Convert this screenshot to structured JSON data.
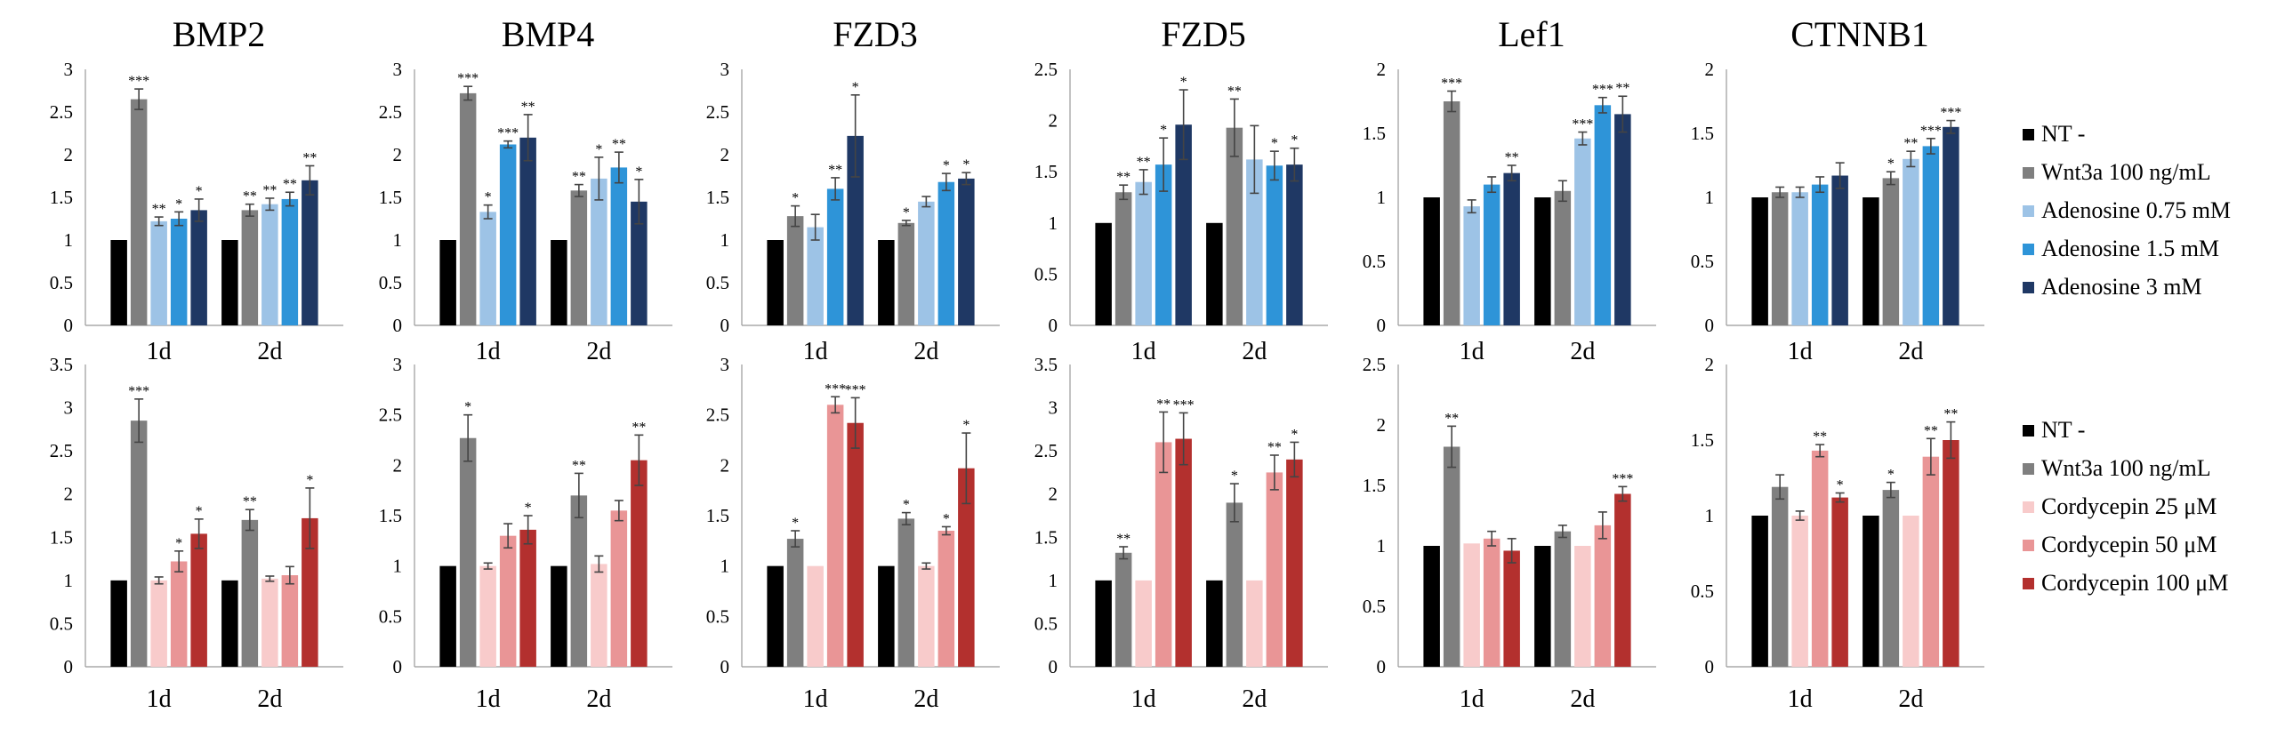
{
  "colors": {
    "NT -": "#000000",
    "Wnt3a 100 ng/mL": "#7f7f7f",
    "Adenosine 0.75 mM": "#9dc3e6",
    "Adenosine 1.5 mM": "#2e94d8",
    "Adenosine 3 mM": "#1f3864",
    "Cordycepin 25 μM": "#f8cbcb",
    "Cordycepin 50 μM": "#e99596",
    "Cordycepin 100 μM": "#b3302e"
  },
  "legends": [
    [
      "NT -",
      "Wnt3a 100 ng/mL",
      "Adenosine 0.75 mM",
      "Adenosine 1.5 mM",
      "Adenosine 3 mM"
    ],
    [
      "NT -",
      "Wnt3a 100 ng/mL",
      "Cordycepin 25 μM",
      "Cordycepin 50 μM",
      "Cordycepin 100 μM"
    ]
  ],
  "chart_data": [
    {
      "type": "bar",
      "title": "BMP2",
      "categories": [
        "1d",
        "2d"
      ],
      "ylim": [
        0,
        3
      ],
      "yticks": [
        "0",
        "0.5",
        "1",
        "1.5",
        "2",
        "2.5",
        "3"
      ],
      "series": [
        {
          "name": "NT -",
          "values": [
            1,
            1
          ],
          "errors": [
            0.02,
            0.02
          ],
          "sig": [
            "",
            ""
          ]
        },
        {
          "name": "Wnt3a 100 ng/mL",
          "values": [
            2.65,
            1.35
          ],
          "errors": [
            0.12,
            0.07
          ],
          "sig": [
            "***",
            "**"
          ]
        },
        {
          "name": "Adenosine 0.75 mM",
          "values": [
            1.22,
            1.42
          ],
          "errors": [
            0.05,
            0.07
          ],
          "sig": [
            "**",
            "**"
          ]
        },
        {
          "name": "Adenosine 1.5 mM",
          "values": [
            1.25,
            1.48
          ],
          "errors": [
            0.08,
            0.08
          ],
          "sig": [
            "*",
            "**"
          ]
        },
        {
          "name": "Adenosine 3 mM",
          "values": [
            1.35,
            1.7
          ],
          "errors": [
            0.13,
            0.17
          ],
          "sig": [
            "*",
            "**"
          ]
        }
      ]
    },
    {
      "type": "bar",
      "title": "BMP4",
      "categories": [
        "1d",
        "2d"
      ],
      "ylim": [
        0,
        3
      ],
      "yticks": [
        "0",
        "0.5",
        "1",
        "1.5",
        "2",
        "2.5",
        "3"
      ],
      "series": [
        {
          "name": "NT -",
          "values": [
            1,
            1
          ],
          "errors": [
            0.02,
            0.02
          ],
          "sig": [
            "",
            ""
          ]
        },
        {
          "name": "Wnt3a 100 ng/mL",
          "values": [
            2.72,
            1.58
          ],
          "errors": [
            0.08,
            0.07
          ],
          "sig": [
            "***",
            "**"
          ]
        },
        {
          "name": "Adenosine 0.75 mM",
          "values": [
            1.33,
            1.72
          ],
          "errors": [
            0.08,
            0.25
          ],
          "sig": [
            "*",
            "*"
          ]
        },
        {
          "name": "Adenosine 1.5 mM",
          "values": [
            2.12,
            1.85
          ],
          "errors": [
            0.04,
            0.18
          ],
          "sig": [
            "***",
            "**"
          ]
        },
        {
          "name": "Adenosine 3 mM",
          "values": [
            2.2,
            1.45
          ],
          "errors": [
            0.27,
            0.26
          ],
          "sig": [
            "**",
            "*"
          ]
        }
      ]
    },
    {
      "type": "bar",
      "title": "FZD3",
      "categories": [
        "1d",
        "2d"
      ],
      "ylim": [
        0,
        3
      ],
      "yticks": [
        "0",
        "0.5",
        "1",
        "1.5",
        "2",
        "2.5",
        "3"
      ],
      "series": [
        {
          "name": "NT -",
          "values": [
            1,
            1
          ],
          "errors": [
            0.02,
            0.02
          ],
          "sig": [
            "",
            ""
          ]
        },
        {
          "name": "Wnt3a 100 ng/mL",
          "values": [
            1.28,
            1.2
          ],
          "errors": [
            0.12,
            0.03
          ],
          "sig": [
            "*",
            "*"
          ]
        },
        {
          "name": "Adenosine 0.75 mM",
          "values": [
            1.15,
            1.45
          ],
          "errors": [
            0.15,
            0.06
          ],
          "sig": [
            "",
            ""
          ]
        },
        {
          "name": "Adenosine 1.5 mM",
          "values": [
            1.6,
            1.68
          ],
          "errors": [
            0.13,
            0.1
          ],
          "sig": [
            "**",
            "*"
          ]
        },
        {
          "name": "Adenosine 3 mM",
          "values": [
            2.22,
            1.72
          ],
          "errors": [
            0.48,
            0.07
          ],
          "sig": [
            "*",
            "*"
          ]
        }
      ]
    },
    {
      "type": "bar",
      "title": "FZD5",
      "categories": [
        "1d",
        "2d"
      ],
      "ylim": [
        0,
        2.5
      ],
      "yticks": [
        "0",
        "0.5",
        "1",
        "1.5",
        "2",
        "2.5"
      ],
      "series": [
        {
          "name": "NT -",
          "values": [
            1,
            1
          ],
          "errors": [
            0.02,
            0.02
          ],
          "sig": [
            "",
            ""
          ]
        },
        {
          "name": "Wnt3a 100 ng/mL",
          "values": [
            1.3,
            1.93
          ],
          "errors": [
            0.07,
            0.28
          ],
          "sig": [
            "**",
            "**"
          ]
        },
        {
          "name": "Adenosine 0.75 mM",
          "values": [
            1.4,
            1.62
          ],
          "errors": [
            0.12,
            0.33
          ],
          "sig": [
            "**",
            ""
          ]
        },
        {
          "name": "Adenosine 1.5 mM",
          "values": [
            1.57,
            1.56
          ],
          "errors": [
            0.26,
            0.14
          ],
          "sig": [
            "*",
            "*"
          ]
        },
        {
          "name": "Adenosine 3 mM",
          "values": [
            1.96,
            1.57
          ],
          "errors": [
            0.34,
            0.16
          ],
          "sig": [
            "*",
            "*"
          ]
        }
      ]
    },
    {
      "type": "bar",
      "title": "Lef1",
      "categories": [
        "1d",
        "2d"
      ],
      "ylim": [
        0,
        2
      ],
      "yticks": [
        "0",
        "0.5",
        "1",
        "1.5",
        "2"
      ],
      "series": [
        {
          "name": "NT -",
          "values": [
            1,
            1
          ],
          "errors": [
            0.02,
            0.02
          ],
          "sig": [
            "",
            ""
          ]
        },
        {
          "name": "Wnt3a 100 ng/mL",
          "values": [
            1.75,
            1.05
          ],
          "errors": [
            0.08,
            0.08
          ],
          "sig": [
            "***",
            ""
          ]
        },
        {
          "name": "Adenosine 0.75 mM",
          "values": [
            0.93,
            1.46
          ],
          "errors": [
            0.05,
            0.05
          ],
          "sig": [
            "",
            "***"
          ]
        },
        {
          "name": "Adenosine 1.5 mM",
          "values": [
            1.1,
            1.72
          ],
          "errors": [
            0.06,
            0.06
          ],
          "sig": [
            "",
            "***"
          ]
        },
        {
          "name": "Adenosine 3 mM",
          "values": [
            1.19,
            1.65
          ],
          "errors": [
            0.06,
            0.14
          ],
          "sig": [
            "**",
            "**"
          ]
        }
      ]
    },
    {
      "type": "bar",
      "title": "CTNNB1",
      "categories": [
        "1d",
        "2d"
      ],
      "ylim": [
        0,
        2
      ],
      "yticks": [
        "0",
        "0.5",
        "1",
        "1.5",
        "2"
      ],
      "series": [
        {
          "name": "NT -",
          "values": [
            1,
            1
          ],
          "errors": [
            0.02,
            0.02
          ],
          "sig": [
            "",
            ""
          ]
        },
        {
          "name": "Wnt3a 100 ng/mL",
          "values": [
            1.04,
            1.15
          ],
          "errors": [
            0.04,
            0.05
          ],
          "sig": [
            "",
            "*"
          ]
        },
        {
          "name": "Adenosine 0.75 mM",
          "values": [
            1.04,
            1.3
          ],
          "errors": [
            0.04,
            0.06
          ],
          "sig": [
            "",
            "**"
          ]
        },
        {
          "name": "Adenosine 1.5 mM",
          "values": [
            1.1,
            1.4
          ],
          "errors": [
            0.06,
            0.06
          ],
          "sig": [
            "",
            "***"
          ]
        },
        {
          "name": "Adenosine 3 mM",
          "values": [
            1.17,
            1.55
          ],
          "errors": [
            0.1,
            0.05
          ],
          "sig": [
            "",
            "***"
          ]
        }
      ]
    },
    {
      "type": "bar",
      "title": "",
      "categories": [
        "1d",
        "2d"
      ],
      "ylim": [
        0,
        3.5
      ],
      "yticks": [
        "0",
        "0.5",
        "1",
        "1.5",
        "2",
        "2.5",
        "3",
        "3.5"
      ],
      "series": [
        {
          "name": "NT -",
          "values": [
            1,
            1
          ],
          "errors": [
            0.02,
            0.02
          ],
          "sig": [
            "",
            ""
          ]
        },
        {
          "name": "Wnt3a 100 ng/mL",
          "values": [
            2.85,
            1.7
          ],
          "errors": [
            0.25,
            0.12
          ],
          "sig": [
            "***",
            "**"
          ]
        },
        {
          "name": "Cordycepin 25 μM",
          "values": [
            1.0,
            1.02
          ],
          "errors": [
            0.04,
            0.03
          ],
          "sig": [
            "",
            ""
          ]
        },
        {
          "name": "Cordycepin 50 μM",
          "values": [
            1.22,
            1.06
          ],
          "errors": [
            0.12,
            0.1
          ],
          "sig": [
            "*",
            ""
          ]
        },
        {
          "name": "Cordycepin 100 μM",
          "values": [
            1.54,
            1.72
          ],
          "errors": [
            0.17,
            0.35
          ],
          "sig": [
            "*",
            "*"
          ]
        }
      ]
    },
    {
      "type": "bar",
      "title": "",
      "categories": [
        "1d",
        "2d"
      ],
      "ylim": [
        0,
        3
      ],
      "yticks": [
        "0",
        "0.5",
        "1",
        "1.5",
        "2",
        "2.5",
        "3"
      ],
      "series": [
        {
          "name": "NT -",
          "values": [
            1,
            1
          ],
          "errors": [
            0.02,
            0.02
          ],
          "sig": [
            "",
            ""
          ]
        },
        {
          "name": "Wnt3a 100 ng/mL",
          "values": [
            2.27,
            1.7
          ],
          "errors": [
            0.23,
            0.22
          ],
          "sig": [
            "*",
            "**"
          ]
        },
        {
          "name": "Cordycepin 25 μM",
          "values": [
            1.0,
            1.02
          ],
          "errors": [
            0.03,
            0.08
          ],
          "sig": [
            "",
            ""
          ]
        },
        {
          "name": "Cordycepin 50 μM",
          "values": [
            1.3,
            1.55
          ],
          "errors": [
            0.12,
            0.1
          ],
          "sig": [
            "",
            ""
          ]
        },
        {
          "name": "Cordycepin 100 μM",
          "values": [
            1.36,
            2.05
          ],
          "errors": [
            0.14,
            0.25
          ],
          "sig": [
            "*",
            "**"
          ]
        }
      ]
    },
    {
      "type": "bar",
      "title": "",
      "categories": [
        "1d",
        "2d"
      ],
      "ylim": [
        0,
        3
      ],
      "yticks": [
        "0",
        "0.5",
        "1",
        "1.5",
        "2",
        "2.5",
        "3"
      ],
      "series": [
        {
          "name": "NT -",
          "values": [
            1,
            1
          ],
          "errors": [
            0.02,
            0.02
          ],
          "sig": [
            "",
            ""
          ]
        },
        {
          "name": "Wnt3a 100 ng/mL",
          "values": [
            1.27,
            1.47
          ],
          "errors": [
            0.08,
            0.06
          ],
          "sig": [
            "*",
            "*"
          ]
        },
        {
          "name": "Cordycepin 25 μM",
          "values": [
            1.0,
            1.0
          ],
          "errors": [
            0.02,
            0.03
          ],
          "sig": [
            "",
            ""
          ]
        },
        {
          "name": "Cordycepin 50 μM",
          "values": [
            2.6,
            1.35
          ],
          "errors": [
            0.08,
            0.04
          ],
          "sig": [
            "***",
            "*"
          ]
        },
        {
          "name": "Cordycepin 100 μM",
          "values": [
            2.42,
            1.97
          ],
          "errors": [
            0.25,
            0.35
          ],
          "sig": [
            "***",
            "*"
          ]
        }
      ]
    },
    {
      "type": "bar",
      "title": "",
      "categories": [
        "1d",
        "2d"
      ],
      "ylim": [
        0,
        3.5
      ],
      "yticks": [
        "0",
        "0.5",
        "1",
        "1.5",
        "2",
        "2.5",
        "3",
        "3.5"
      ],
      "series": [
        {
          "name": "NT -",
          "values": [
            1,
            1
          ],
          "errors": [
            0.02,
            0.02
          ],
          "sig": [
            "",
            ""
          ]
        },
        {
          "name": "Wnt3a 100 ng/mL",
          "values": [
            1.32,
            1.9
          ],
          "errors": [
            0.07,
            0.22
          ],
          "sig": [
            "**",
            "*"
          ]
        },
        {
          "name": "Cordycepin 25 μM",
          "values": [
            1.0,
            1.0
          ],
          "errors": [
            0.02,
            0.02
          ],
          "sig": [
            "",
            ""
          ]
        },
        {
          "name": "Cordycepin 50 μM",
          "values": [
            2.6,
            2.25
          ],
          "errors": [
            0.35,
            0.2
          ],
          "sig": [
            "**",
            "**"
          ]
        },
        {
          "name": "Cordycepin 100 μM",
          "values": [
            2.64,
            2.4
          ],
          "errors": [
            0.3,
            0.2
          ],
          "sig": [
            "***",
            "*"
          ]
        }
      ]
    },
    {
      "type": "bar",
      "title": "",
      "categories": [
        "1d",
        "2d"
      ],
      "ylim": [
        0,
        2.5
      ],
      "yticks": [
        "0",
        "0.5",
        "1",
        "1.5",
        "2",
        "2.5"
      ],
      "series": [
        {
          "name": "NT -",
          "values": [
            1,
            1
          ],
          "errors": [
            0.02,
            0.02
          ],
          "sig": [
            "",
            ""
          ]
        },
        {
          "name": "Wnt3a 100 ng/mL",
          "values": [
            1.82,
            1.12
          ],
          "errors": [
            0.17,
            0.05
          ],
          "sig": [
            "**",
            ""
          ]
        },
        {
          "name": "Cordycepin 25 μM",
          "values": [
            1.02,
            1.0
          ],
          "errors": [
            0.02,
            0.02
          ],
          "sig": [
            "",
            ""
          ]
        },
        {
          "name": "Cordycepin 50 μM",
          "values": [
            1.06,
            1.17
          ],
          "errors": [
            0.06,
            0.11
          ],
          "sig": [
            "",
            ""
          ]
        },
        {
          "name": "Cordycepin 100 μM",
          "values": [
            0.96,
            1.43
          ],
          "errors": [
            0.1,
            0.06
          ],
          "sig": [
            "",
            "***"
          ]
        }
      ]
    },
    {
      "type": "bar",
      "title": "",
      "categories": [
        "1d",
        "2d"
      ],
      "ylim": [
        0,
        2
      ],
      "yticks": [
        "0",
        "0.5",
        "1",
        "1.5",
        "2"
      ],
      "series": [
        {
          "name": "NT -",
          "values": [
            1,
            1
          ],
          "errors": [
            0.02,
            0.02
          ],
          "sig": [
            "",
            ""
          ]
        },
        {
          "name": "Wnt3a 100 ng/mL",
          "values": [
            1.19,
            1.17
          ],
          "errors": [
            0.08,
            0.05
          ],
          "sig": [
            "",
            "*"
          ]
        },
        {
          "name": "Cordycepin 25 μM",
          "values": [
            1.0,
            1.0
          ],
          "errors": [
            0.03,
            0.02
          ],
          "sig": [
            "",
            ""
          ]
        },
        {
          "name": "Cordycepin 50 μM",
          "values": [
            1.43,
            1.39
          ],
          "errors": [
            0.04,
            0.12
          ],
          "sig": [
            "**",
            "**"
          ]
        },
        {
          "name": "Cordycepin 100 μM",
          "values": [
            1.12,
            1.5
          ],
          "errors": [
            0.03,
            0.12
          ],
          "sig": [
            "*",
            "**"
          ]
        }
      ]
    }
  ]
}
